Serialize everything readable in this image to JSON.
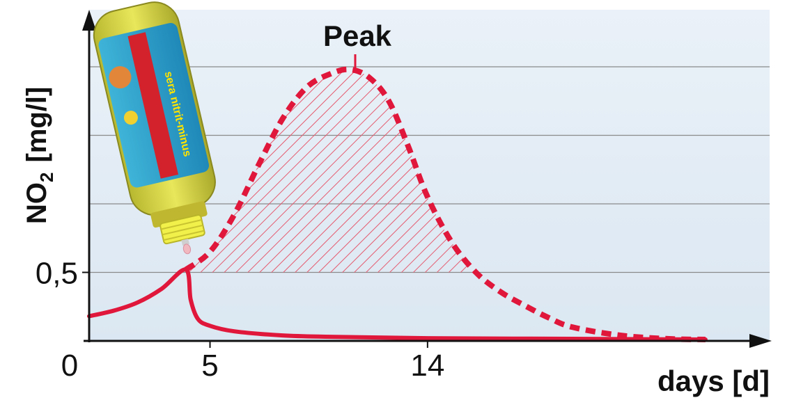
{
  "chart_data": {
    "type": "line",
    "title": "",
    "xlabel": "days [d]",
    "ylabel_main": "NO",
    "ylabel_sub": "2",
    "ylabel_unit": "[mg/l]",
    "annotation": "Peak",
    "x_ticks": [
      {
        "value": 0,
        "label": "0"
      },
      {
        "value": 5,
        "label": "5"
      },
      {
        "value": 14,
        "label": "14"
      }
    ],
    "y_ticks": [
      {
        "value": 0.5,
        "label": "0,5"
      }
    ],
    "xlim": [
      0,
      27
    ],
    "ylim": [
      0,
      2.0
    ],
    "grid": true,
    "gridline_values": [
      0.5,
      1.0,
      1.5,
      2.0
    ],
    "colors": {
      "accent": "#e0173a",
      "axis": "#111111",
      "grid": "#8a8a8a",
      "hatch": "#e55a6e",
      "background_top": "#eaf1f8",
      "background_bottom": "#dbe7f2"
    },
    "series": [
      {
        "style": "solid",
        "x": [
          0,
          1,
          2,
          3,
          4,
          4.2,
          4.5,
          5,
          6,
          8,
          10,
          14,
          20,
          25.5
        ],
        "y": [
          0.18,
          0.22,
          0.28,
          0.38,
          0.52,
          0.3,
          0.16,
          0.11,
          0.07,
          0.04,
          0.03,
          0.02,
          0.015,
          0.01
        ]
      },
      {
        "style": "dashed",
        "x": [
          4,
          5,
          6,
          7,
          8,
          9,
          10,
          10.8,
          11.6,
          12.4,
          13.2,
          14,
          15,
          16,
          17,
          18,
          19,
          20,
          22,
          24,
          25.5
        ],
        "y": [
          0.52,
          0.65,
          0.92,
          1.28,
          1.62,
          1.85,
          1.95,
          1.98,
          1.92,
          1.75,
          1.42,
          1.05,
          0.72,
          0.5,
          0.36,
          0.26,
          0.17,
          0.1,
          0.04,
          0.015,
          0.01
        ]
      }
    ],
    "peak": {
      "x": 10.8,
      "y": 1.98
    },
    "image_overlay": {
      "icon": "sera-nitrit-minus-bottle-icon",
      "product_text": "sera nitrit-minus"
    }
  }
}
